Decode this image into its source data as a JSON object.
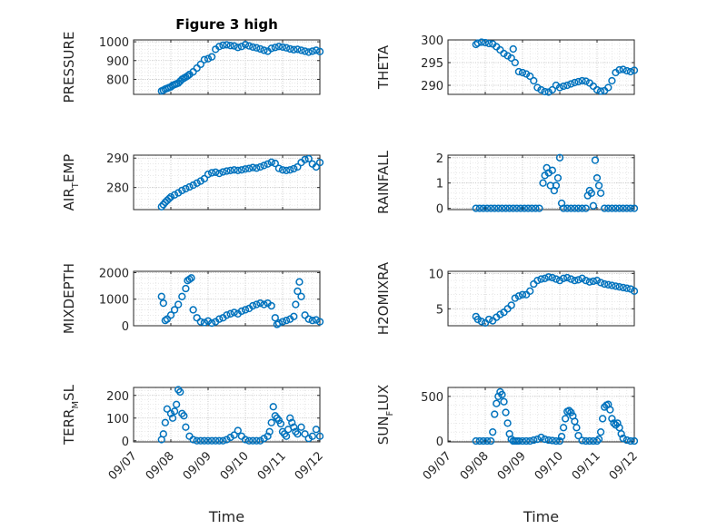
{
  "chart_data": [
    {
      "type": "scatter",
      "title": "Figure 3 high",
      "ylabel": "PRESSURE",
      "xlabel": "",
      "xlim": [
        "09/07",
        "09/12"
      ],
      "ylim": [
        720,
        1010
      ],
      "yticks": [
        800,
        900,
        1000
      ],
      "xticks": [],
      "marker_color": "#0072BD",
      "grid": true,
      "series": [
        {
          "x": [
            0.75,
            0.8,
            0.85,
            0.9,
            0.95,
            1.0,
            1.05,
            1.1,
            1.15,
            1.2,
            1.25,
            1.3,
            1.35,
            1.4,
            1.45,
            1.5,
            1.6,
            1.7,
            1.8,
            1.9,
            2.0,
            2.1,
            2.2,
            2.3,
            2.4,
            2.5,
            2.6,
            2.7,
            2.8,
            2.9,
            3.0,
            3.1,
            3.2,
            3.3,
            3.4,
            3.5,
            3.6,
            3.7,
            3.8,
            3.9,
            4.0,
            4.1,
            4.2,
            4.3,
            4.4,
            4.5,
            4.6,
            4.7,
            4.8,
            4.9,
            5.0
          ],
          "y": [
            738,
            742,
            748,
            752,
            756,
            760,
            768,
            772,
            776,
            780,
            790,
            800,
            806,
            812,
            818,
            826,
            840,
            860,
            880,
            905,
            910,
            920,
            960,
            975,
            982,
            984,
            980,
            978,
            970,
            975,
            985,
            978,
            972,
            968,
            962,
            955,
            950,
            965,
            970,
            975,
            972,
            968,
            962,
            958,
            960,
            955,
            950,
            945,
            950,
            955,
            948
          ]
        }
      ]
    },
    {
      "type": "scatter",
      "title": "",
      "ylabel": "THETA",
      "xlabel": "",
      "xlim": [
        "09/07",
        "09/12"
      ],
      "ylim": [
        288,
        300
      ],
      "yticks": [
        290,
        295,
        300
      ],
      "xticks": [],
      "marker_color": "#0072BD",
      "grid": true,
      "series": [
        {
          "x": [
            0.75,
            0.8,
            0.9,
            1.0,
            1.1,
            1.2,
            1.3,
            1.4,
            1.5,
            1.6,
            1.7,
            1.75,
            1.8,
            1.9,
            2.0,
            2.1,
            2.2,
            2.3,
            2.4,
            2.5,
            2.6,
            2.7,
            2.8,
            2.9,
            3.0,
            3.1,
            3.2,
            3.3,
            3.4,
            3.5,
            3.6,
            3.7,
            3.8,
            3.9,
            4.0,
            4.1,
            4.2,
            4.3,
            4.4,
            4.5,
            4.6,
            4.7,
            4.8,
            4.9,
            5.0
          ],
          "y": [
            299,
            299.3,
            299.5,
            299.4,
            299.2,
            299.1,
            298.5,
            297.8,
            297,
            296.5,
            296,
            298,
            295,
            293,
            292.8,
            292.5,
            292,
            291,
            289.5,
            289,
            288.6,
            288.5,
            289,
            290,
            289.5,
            289.8,
            290,
            290.3,
            290.6,
            290.8,
            291,
            290.9,
            290.5,
            289.8,
            289,
            288.7,
            288.8,
            289.5,
            291,
            292.8,
            293.4,
            293.5,
            293.2,
            293,
            293.3
          ]
        }
      ]
    },
    {
      "type": "scatter",
      "title": "",
      "ylabel": "AIR",
      "ylabel_sub": "T",
      "ylabel_rest": "EMP",
      "xlabel": "",
      "xlim": [
        "09/07",
        "09/12"
      ],
      "ylim": [
        272.5,
        291
      ],
      "yticks": [
        280,
        290
      ],
      "xticks": [],
      "marker_color": "#0072BD",
      "grid": true,
      "series": [
        {
          "x": [
            0.75,
            0.8,
            0.85,
            0.9,
            0.95,
            1.0,
            1.1,
            1.2,
            1.3,
            1.4,
            1.5,
            1.6,
            1.7,
            1.8,
            1.9,
            2.0,
            2.1,
            2.2,
            2.3,
            2.4,
            2.5,
            2.6,
            2.7,
            2.8,
            2.9,
            3.0,
            3.1,
            3.2,
            3.3,
            3.4,
            3.5,
            3.6,
            3.7,
            3.8,
            3.9,
            4.0,
            4.1,
            4.2,
            4.3,
            4.4,
            4.5,
            4.6,
            4.7,
            4.8,
            4.9,
            5.0
          ],
          "y": [
            273.5,
            274.2,
            275,
            275.6,
            276.2,
            276.8,
            277.5,
            278.2,
            279,
            279.6,
            280.2,
            280.8,
            281.5,
            282.2,
            283,
            284.5,
            285,
            285.2,
            284.8,
            285.3,
            285.6,
            285.8,
            286,
            285.8,
            286,
            286.3,
            286.5,
            286.8,
            286.6,
            287,
            287.5,
            288,
            288.6,
            288.2,
            286.5,
            286,
            285.8,
            286,
            286.4,
            287,
            288.5,
            289.5,
            289.8,
            288,
            287,
            288.5
          ]
        }
      ]
    },
    {
      "type": "scatter",
      "title": "",
      "ylabel": "RAINFALL",
      "xlabel": "",
      "xlim": [
        "09/07",
        "09/12"
      ],
      "ylim": [
        -0.05,
        2.1
      ],
      "yticks": [
        0,
        1,
        2
      ],
      "xticks": [],
      "marker_color": "#0072BD",
      "grid": true,
      "series": [
        {
          "x": [
            0.75,
            0.85,
            0.95,
            1.05,
            1.15,
            1.25,
            1.35,
            1.45,
            1.55,
            1.65,
            1.75,
            1.85,
            1.95,
            2.05,
            2.15,
            2.25,
            2.35,
            2.45,
            2.55,
            2.6,
            2.65,
            2.7,
            2.75,
            2.8,
            2.85,
            2.9,
            2.95,
            3.0,
            3.05,
            3.1,
            3.2,
            3.3,
            3.4,
            3.5,
            3.6,
            3.7,
            3.75,
            3.8,
            3.85,
            3.9,
            3.95,
            4.0,
            4.05,
            4.1,
            4.2,
            4.3,
            4.4,
            4.5,
            4.6,
            4.7,
            4.8,
            4.9,
            5.0
          ],
          "y": [
            0,
            0,
            0,
            0,
            0,
            0,
            0,
            0,
            0,
            0,
            0,
            0,
            0,
            0,
            0,
            0,
            0,
            0,
            1.0,
            1.3,
            1.6,
            1.4,
            0.9,
            1.5,
            0.7,
            0.9,
            1.2,
            2.0,
            0.2,
            0,
            0,
            0,
            0,
            0,
            0,
            0,
            0.5,
            0.7,
            0.6,
            0.1,
            1.9,
            1.2,
            0.9,
            0.6,
            0,
            0,
            0,
            0,
            0,
            0,
            0,
            0,
            0
          ]
        }
      ]
    },
    {
      "type": "scatter",
      "title": "",
      "ylabel": "MIXDEPTH",
      "xlabel": "",
      "xlim": [
        "09/07",
        "09/12"
      ],
      "ylim": [
        0,
        2050
      ],
      "yticks": [
        0,
        1000,
        2000
      ],
      "xticks": [],
      "marker_color": "#0072BD",
      "grid": true,
      "series": [
        {
          "x": [
            0.75,
            0.8,
            0.85,
            0.9,
            1.0,
            1.1,
            1.2,
            1.3,
            1.4,
            1.45,
            1.5,
            1.55,
            1.6,
            1.7,
            1.8,
            1.9,
            2.0,
            2.1,
            2.2,
            2.3,
            2.4,
            2.5,
            2.6,
            2.7,
            2.8,
            2.9,
            3.0,
            3.1,
            3.2,
            3.3,
            3.4,
            3.5,
            3.6,
            3.7,
            3.8,
            3.85,
            3.9,
            4.0,
            4.1,
            4.2,
            4.3,
            4.35,
            4.4,
            4.45,
            4.5,
            4.6,
            4.7,
            4.8,
            4.9,
            5.0
          ],
          "y": [
            1100,
            850,
            200,
            250,
            400,
            600,
            800,
            1100,
            1400,
            1700,
            1750,
            1800,
            600,
            300,
            150,
            120,
            180,
            100,
            150,
            250,
            300,
            400,
            450,
            500,
            450,
            550,
            600,
            650,
            750,
            800,
            850,
            800,
            850,
            750,
            300,
            50,
            100,
            150,
            200,
            250,
            350,
            800,
            1300,
            1650,
            1100,
            400,
            250,
            200,
            220,
            150
          ]
        }
      ]
    },
    {
      "type": "scatter",
      "title": "",
      "ylabel": "H2OMIXRA",
      "xlabel": "",
      "xlim": [
        "09/07",
        "09/12"
      ],
      "ylim": [
        2.6,
        10.3
      ],
      "yticks": [
        5,
        10
      ],
      "xticks": [],
      "marker_color": "#0072BD",
      "grid": true,
      "series": [
        {
          "x": [
            0.75,
            0.8,
            0.9,
            1.0,
            1.1,
            1.2,
            1.3,
            1.4,
            1.5,
            1.6,
            1.7,
            1.8,
            1.9,
            2.0,
            2.1,
            2.2,
            2.3,
            2.4,
            2.5,
            2.6,
            2.7,
            2.8,
            2.9,
            3.0,
            3.1,
            3.2,
            3.3,
            3.4,
            3.5,
            3.6,
            3.7,
            3.8,
            3.9,
            4.0,
            4.1,
            4.2,
            4.3,
            4.4,
            4.5,
            4.6,
            4.7,
            4.8,
            4.9,
            5.0
          ],
          "y": [
            3.9,
            3.5,
            3.2,
            3.0,
            3.5,
            3.3,
            3.8,
            4.2,
            4.5,
            5.0,
            5.5,
            6.5,
            6.8,
            7.0,
            7.0,
            7.5,
            8.5,
            9.0,
            9.2,
            9.3,
            9.5,
            9.4,
            9.2,
            9.0,
            9.3,
            9.4,
            9.2,
            9.0,
            9.1,
            9.3,
            9.0,
            8.8,
            8.9,
            9.0,
            8.7,
            8.5,
            8.4,
            8.3,
            8.2,
            8.1,
            8.0,
            7.9,
            7.8,
            7.5
          ]
        }
      ]
    },
    {
      "type": "scatter",
      "title": "",
      "ylabel": "TERR",
      "ylabel_sub": "M",
      "ylabel_rest": "SL",
      "xlabel": "Time",
      "xlim": [
        "09/07",
        "09/12"
      ],
      "ylim": [
        -5,
        235
      ],
      "yticks": [
        0,
        100,
        200
      ],
      "xticks": [
        "09/07",
        "09/08",
        "09/09",
        "09/10",
        "09/11",
        "09/12"
      ],
      "marker_color": "#0072BD",
      "grid": true,
      "series": [
        {
          "x": [
            0.75,
            0.8,
            0.85,
            0.9,
            1.0,
            1.05,
            1.1,
            1.15,
            1.2,
            1.25,
            1.3,
            1.35,
            1.4,
            1.5,
            1.6,
            1.7,
            1.8,
            1.9,
            2.0,
            2.1,
            2.2,
            2.3,
            2.4,
            2.5,
            2.6,
            2.7,
            2.8,
            2.9,
            3.0,
            3.1,
            3.2,
            3.3,
            3.4,
            3.5,
            3.6,
            3.65,
            3.7,
            3.75,
            3.8,
            3.85,
            3.9,
            3.95,
            4.0,
            4.05,
            4.1,
            4.15,
            4.2,
            4.25,
            4.3,
            4.35,
            4.4,
            4.5,
            4.6,
            4.7,
            4.8,
            4.9,
            5.0
          ],
          "y": [
            5,
            30,
            80,
            140,
            120,
            100,
            130,
            160,
            225,
            215,
            120,
            110,
            60,
            20,
            5,
            0,
            0,
            0,
            0,
            0,
            0,
            0,
            0,
            5,
            15,
            25,
            45,
            20,
            5,
            0,
            0,
            0,
            0,
            10,
            20,
            40,
            80,
            150,
            110,
            100,
            90,
            75,
            40,
            30,
            20,
            50,
            100,
            80,
            60,
            40,
            30,
            60,
            30,
            10,
            20,
            50,
            20
          ]
        }
      ]
    },
    {
      "type": "scatter",
      "title": "",
      "ylabel": "SUN",
      "ylabel_sub": "F",
      "ylabel_rest": "LUX",
      "xlabel": "Time",
      "xlim": [
        "09/07",
        "09/12"
      ],
      "ylim": [
        -10,
        600
      ],
      "yticks": [
        0,
        500
      ],
      "xticks": [
        "09/07",
        "09/08",
        "09/09",
        "09/10",
        "09/11",
        "09/12"
      ],
      "marker_color": "#0072BD",
      "grid": true,
      "series": [
        {
          "x": [
            0.75,
            0.85,
            0.95,
            1.05,
            1.15,
            1.2,
            1.25,
            1.3,
            1.35,
            1.4,
            1.45,
            1.5,
            1.55,
            1.6,
            1.65,
            1.7,
            1.75,
            1.8,
            1.85,
            1.9,
            2.0,
            2.1,
            2.2,
            2.3,
            2.4,
            2.5,
            2.6,
            2.7,
            2.8,
            2.9,
            3.0,
            3.05,
            3.1,
            3.15,
            3.2,
            3.25,
            3.3,
            3.35,
            3.4,
            3.45,
            3.5,
            3.6,
            3.7,
            3.8,
            3.9,
            4.0,
            4.05,
            4.1,
            4.15,
            4.2,
            4.25,
            4.3,
            4.35,
            4.4,
            4.45,
            4.5,
            4.55,
            4.6,
            4.65,
            4.7,
            4.8,
            4.9,
            5.0
          ],
          "y": [
            0,
            0,
            0,
            0,
            0,
            100,
            300,
            420,
            500,
            550,
            520,
            440,
            320,
            200,
            80,
            20,
            0,
            0,
            0,
            0,
            0,
            0,
            0,
            10,
            20,
            40,
            20,
            10,
            5,
            0,
            0,
            50,
            150,
            250,
            330,
            340,
            320,
            280,
            220,
            150,
            60,
            5,
            0,
            0,
            0,
            0,
            20,
            100,
            250,
            380,
            400,
            410,
            350,
            250,
            200,
            180,
            200,
            150,
            80,
            30,
            10,
            0,
            0
          ]
        }
      ]
    }
  ]
}
